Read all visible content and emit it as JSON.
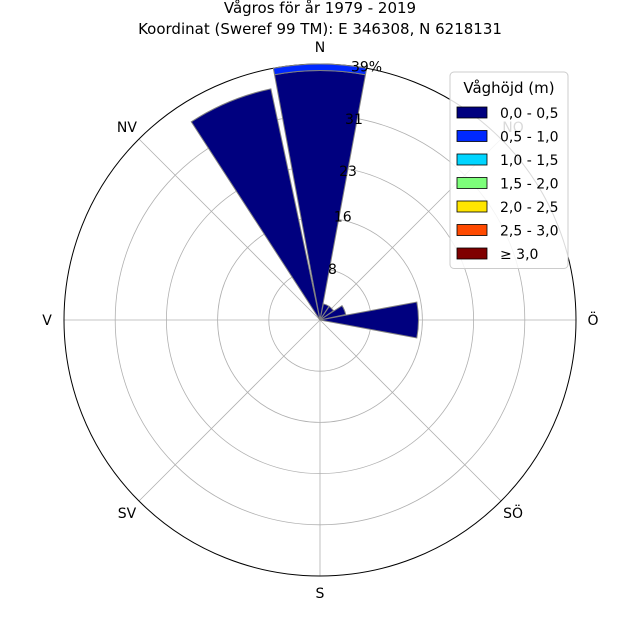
{
  "title": {
    "line1": "Vågros för år 1979 - 2019",
    "line2": "Koordinat (Sweref 99 TM): E 346308, N 6218131"
  },
  "chart_data": {
    "type": "polar-bar",
    "title": "Vågros för år 1979 - 2019",
    "subtitle": "Koordinat (Sweref 99 TM): E 346308, N 6218131",
    "directions": [
      "N",
      "NO",
      "Ö",
      "SÖ",
      "S",
      "SV",
      "V",
      "NV"
    ],
    "radial_ticks": [
      {
        "value": 8,
        "label": "8"
      },
      {
        "value": 16,
        "label": "16"
      },
      {
        "value": 23,
        "label": "23"
      },
      {
        "value": 31,
        "label": "31"
      },
      {
        "value": 39,
        "label": "39%"
      }
    ],
    "r_max": 39,
    "grid": true,
    "legend_position": "top-right",
    "legend_title": "Våghöjd (m)",
    "series": [
      {
        "name": "0,0 - 0,5",
        "color": "#00007f"
      },
      {
        "name": "0,5 - 1,0",
        "color": "#0029ff"
      },
      {
        "name": "1,0 - 1,5",
        "color": "#00d5ff"
      },
      {
        "name": "1,5 - 2,0",
        "color": "#7dff7a"
      },
      {
        "name": "2,0 - 2,5",
        "color": "#ffe500"
      },
      {
        "name": "2,5 - 3,0",
        "color": "#ff4a00"
      },
      {
        "name": "≥ 3,0",
        "color": "#7f0000"
      }
    ],
    "bars": [
      {
        "direction_deg": 0,
        "segments": [
          {
            "series": "0,0 - 0,5",
            "value": 38.0
          },
          {
            "series": "0,5 - 1,0",
            "value": 1.0
          }
        ]
      },
      {
        "direction_deg": 22.5,
        "segments": [
          {
            "series": "0,0 - 0,5",
            "value": 2.5
          }
        ]
      },
      {
        "direction_deg": 45,
        "segments": [
          {
            "series": "0,0 - 0,5",
            "value": 2.5
          }
        ]
      },
      {
        "direction_deg": 67.5,
        "segments": [
          {
            "series": "0,0 - 0,5",
            "value": 4.0
          }
        ]
      },
      {
        "direction_deg": 90,
        "segments": [
          {
            "series": "0,0 - 0,5",
            "value": 15.0
          }
        ]
      },
      {
        "direction_deg": 337.5,
        "segments": [
          {
            "series": "0,0 - 0,5",
            "value": 36.0
          }
        ]
      }
    ]
  }
}
